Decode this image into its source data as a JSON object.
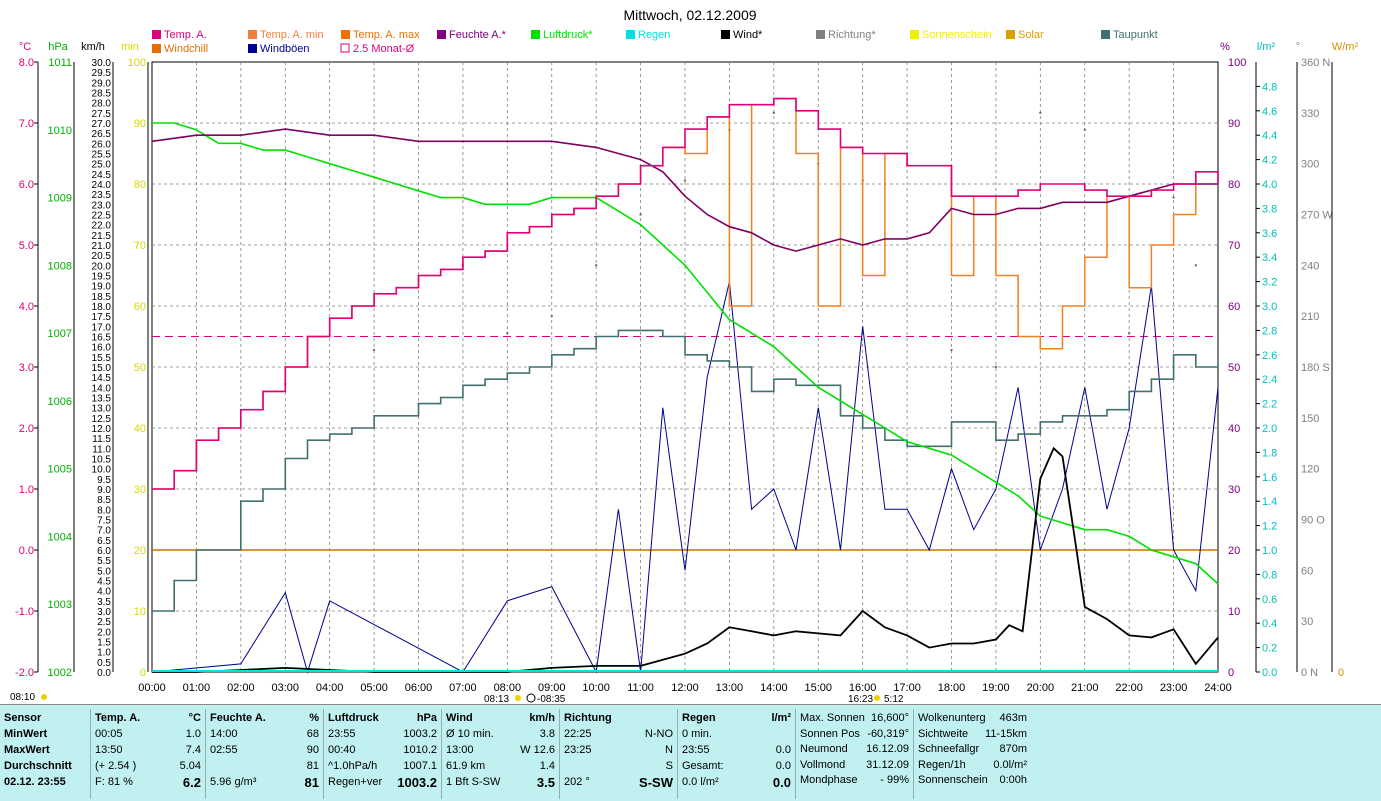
{
  "chart_data": {
    "type": "line",
    "title": "Mittwoch, 02.12.2009",
    "x_axis": {
      "unit": "hours",
      "range": [
        0,
        24
      ],
      "tick_labels": [
        "00:00",
        "01:00",
        "02:00",
        "03:00",
        "04:00",
        "05:00",
        "06:00",
        "07:00",
        "08:00",
        "09:00",
        "10:00",
        "11:00",
        "12:00",
        "13:00",
        "14:00",
        "15:00",
        "16:00",
        "17:00",
        "18:00",
        "19:00",
        "20:00",
        "21:00",
        "22:00",
        "23:00",
        "24:00"
      ],
      "sun_markers": [
        "08:10",
        "08:13",
        "08:35",
        "16:23",
        "16:25:12"
      ],
      "sun_labels": {
        "sunrise_left": "08:10",
        "sunrise": "08:13",
        "dawn_end": "-08:35",
        "sunset": "16:23",
        "sunset_end": "5:12"
      }
    },
    "axes_left": [
      {
        "name": "temperature",
        "unit": "°C",
        "range": [
          -2,
          8
        ],
        "ticks": [
          "8.0",
          "7.0",
          "6.0",
          "5.0",
          "4.0",
          "3.0",
          "2.0",
          "1.0",
          "0.0",
          "-1.0",
          "-2.0"
        ],
        "color": "#e0007a"
      },
      {
        "name": "pressure",
        "unit": "hPa",
        "range": [
          1002,
          1011
        ],
        "ticks": [
          "1011",
          "1010",
          "1009",
          "1008",
          "1007",
          "1006",
          "1005",
          "1004",
          "1003",
          "1002"
        ],
        "color": "#00b000"
      },
      {
        "name": "wind",
        "unit": "km/h",
        "range": [
          0,
          30
        ],
        "color": "#000000"
      },
      {
        "name": "minutes",
        "unit": "min",
        "range": [
          0,
          100
        ],
        "ticks": [
          "100",
          "90",
          "80",
          "70",
          "60",
          "50",
          "40",
          "30",
          "20",
          "10",
          "0"
        ],
        "color": "#d8d800"
      }
    ],
    "axes_right": [
      {
        "name": "humidity",
        "unit": "%",
        "range": [
          0,
          100
        ],
        "ticks": [
          "100",
          "90",
          "80",
          "70",
          "60",
          "50",
          "40",
          "30",
          "20",
          "10",
          "0"
        ],
        "color": "#800080"
      },
      {
        "name": "rain",
        "unit": "l/m²",
        "range": [
          0,
          5
        ],
        "ticks": [
          "4.8",
          "4.6",
          "4.4",
          "4.2",
          "4.0",
          "3.8",
          "3.6",
          "3.4",
          "3.2",
          "3.0",
          "2.8",
          "2.6",
          "2.4",
          "2.2",
          "2.0",
          "1.8",
          "1.6",
          "1.4",
          "1.2",
          "1.0",
          "0.8",
          "0.6",
          "0.4",
          "0.2",
          "0.0"
        ],
        "color": "#00c0c0"
      },
      {
        "name": "direction",
        "unit": "°",
        "range": [
          0,
          360
        ],
        "ticks": [
          "360 N",
          "330",
          "300",
          "270 W",
          "240",
          "210",
          "180 S",
          "150",
          "120",
          "90 O",
          "60",
          "30",
          "0 N"
        ],
        "color": "#808080"
      },
      {
        "name": "solar",
        "unit": "W/m²",
        "range": [
          0,
          0
        ],
        "ticks": [
          "0"
        ],
        "color": "#d89000"
      }
    ],
    "legend": [
      {
        "label": "Temp. A.",
        "color": "#e0007a"
      },
      {
        "label": "Temp. A. min",
        "color": "#f08040"
      },
      {
        "label": "Temp. A. max",
        "color": "#f07000"
      },
      {
        "label": "Feuchte A.*",
        "color": "#800080"
      },
      {
        "label": "Luftdruck*",
        "color": "#00e000"
      },
      {
        "label": "Regen",
        "color": "#00e0e0"
      },
      {
        "label": "Wind*",
        "color": "#000000"
      },
      {
        "label": "Richtung*",
        "color": "#808080"
      },
      {
        "label": "Sonnenschein",
        "color": "#f0f000"
      },
      {
        "label": "Solar",
        "color": "#d8a000"
      },
      {
        "label": "Taupunkt",
        "color": "#407070"
      },
      {
        "label": "Windchill",
        "color": "#e07000"
      },
      {
        "label": "Windböen",
        "color": "#000090"
      },
      {
        "label": "2.5 Monat-Ø",
        "color": "#e0007a"
      }
    ],
    "reference_lines": {
      "temp_2_5_month_avg_c": 3.5,
      "windchill_level_c": 0.0
    },
    "series": [
      {
        "name": "Temp. A.",
        "unit": "°C",
        "x": [
          0,
          0.5,
          1,
          1.5,
          2,
          2.5,
          3,
          3.5,
          4,
          4.5,
          5,
          5.5,
          6,
          6.5,
          7,
          7.5,
          8,
          8.5,
          9,
          9.5,
          10,
          10.5,
          11,
          11.5,
          12,
          12.5,
          13,
          13.5,
          14,
          14.5,
          15,
          15.5,
          16,
          16.5,
          17,
          17.5,
          18,
          18.5,
          19,
          19.5,
          20,
          20.5,
          21,
          21.5,
          22,
          22.5,
          23,
          23.5,
          24
        ],
        "values": [
          1.0,
          1.3,
          1.8,
          2.0,
          2.3,
          2.6,
          3.0,
          3.5,
          3.8,
          4.0,
          4.2,
          4.3,
          4.5,
          4.6,
          4.8,
          4.9,
          5.2,
          5.3,
          5.5,
          5.6,
          5.8,
          6.0,
          6.3,
          6.6,
          6.9,
          7.1,
          7.3,
          7.3,
          7.4,
          7.2,
          6.9,
          6.6,
          6.5,
          6.5,
          6.3,
          6.3,
          5.8,
          5.8,
          5.8,
          5.9,
          6.0,
          6.0,
          5.9,
          5.8,
          5.8,
          5.9,
          6.0,
          6.2,
          6.0
        ]
      },
      {
        "name": "Windchill",
        "unit": "°C",
        "x": [
          0,
          0.5,
          1,
          1.5,
          2,
          2.5,
          3,
          3.5,
          4,
          4.5,
          5,
          5.5,
          6,
          6.5,
          7,
          7.5,
          8,
          8.5,
          9,
          9.5,
          10,
          10.5,
          11,
          11.5,
          12,
          12.5,
          13,
          13.5,
          14,
          14.5,
          15,
          15.5,
          16,
          16.5,
          17,
          17.5,
          18,
          18.5,
          19,
          19.5,
          20,
          20.5,
          21,
          21.5,
          22,
          22.5,
          23,
          23.5,
          24
        ],
        "values": [
          1.0,
          1.3,
          1.8,
          2.0,
          2.3,
          2.6,
          3.0,
          3.5,
          3.8,
          4.0,
          4.2,
          4.3,
          4.5,
          4.6,
          4.8,
          4.9,
          5.2,
          5.3,
          5.5,
          5.6,
          5.8,
          6.0,
          6.3,
          6.6,
          6.5,
          7.1,
          4.0,
          7.3,
          7.4,
          6.5,
          4.0,
          6.6,
          4.5,
          6.5,
          6.3,
          6.3,
          4.5,
          5.8,
          4.5,
          3.5,
          3.3,
          4.0,
          4.8,
          5.8,
          4.3,
          5.0,
          5.5,
          6.2,
          6.0
        ]
      },
      {
        "name": "Feuchte A.*",
        "unit": "%",
        "x": [
          0,
          1,
          2,
          3,
          4,
          5,
          6,
          7,
          8,
          9,
          10,
          10.5,
          11,
          11.5,
          12,
          12.5,
          13,
          13.5,
          14,
          14.5,
          15,
          15.5,
          16,
          16.5,
          17,
          17.5,
          18,
          18.5,
          19,
          19.5,
          20,
          20.5,
          21,
          21.5,
          22,
          22.5,
          23,
          23.5,
          24
        ],
        "values": [
          87,
          88,
          88,
          89,
          88,
          88,
          87,
          87,
          87,
          87,
          86,
          85,
          84,
          82,
          78,
          75,
          73,
          72,
          70,
          69,
          70,
          71,
          70,
          71,
          71,
          72,
          76,
          75,
          75,
          76,
          76,
          77,
          77,
          77,
          78,
          79,
          80,
          80,
          80
        ]
      },
      {
        "name": "Luftdruck*",
        "unit": "hPa",
        "x": [
          0,
          0.5,
          1,
          1.5,
          2,
          2.5,
          3,
          3.5,
          4,
          4.5,
          5,
          5.5,
          6,
          6.5,
          7,
          7.5,
          8,
          8.5,
          9,
          9.5,
          10,
          10.5,
          11,
          11.5,
          12,
          12.5,
          13,
          13.5,
          14,
          14.5,
          15,
          15.5,
          16,
          16.5,
          17,
          17.5,
          18,
          18.5,
          19,
          19.5,
          20,
          20.5,
          21,
          21.5,
          22,
          22.5,
          23,
          23.5,
          24
        ],
        "values": [
          1010.1,
          1010.1,
          1010.0,
          1009.8,
          1009.8,
          1009.7,
          1009.7,
          1009.6,
          1009.5,
          1009.4,
          1009.3,
          1009.2,
          1009.1,
          1009.0,
          1009.0,
          1008.9,
          1008.9,
          1008.9,
          1009.0,
          1009.0,
          1009.0,
          1008.8,
          1008.6,
          1008.3,
          1008.0,
          1007.6,
          1007.2,
          1007.0,
          1006.8,
          1006.5,
          1006.2,
          1006.0,
          1005.8,
          1005.6,
          1005.4,
          1005.3,
          1005.2,
          1005.0,
          1004.8,
          1004.6,
          1004.3,
          1004.2,
          1004.1,
          1004.1,
          1004.0,
          1003.8,
          1003.7,
          1003.6,
          1003.3
        ]
      },
      {
        "name": "Taupunkt",
        "unit": "°C",
        "x": [
          0,
          0.5,
          1,
          1.5,
          2,
          2.5,
          3,
          3.5,
          4,
          4.5,
          5,
          5.5,
          6,
          6.5,
          7,
          7.5,
          8,
          8.5,
          9,
          9.5,
          10,
          10.5,
          11,
          11.5,
          12,
          12.5,
          13,
          13.5,
          14,
          14.5,
          15,
          15.5,
          16,
          16.5,
          17,
          17.5,
          18,
          18.5,
          19,
          19.5,
          20,
          20.5,
          21,
          21.5,
          22,
          22.5,
          23,
          23.5,
          24
        ],
        "values": [
          -1.0,
          -0.5,
          0.0,
          0.0,
          0.8,
          1.0,
          1.5,
          1.8,
          1.9,
          2.0,
          2.2,
          2.2,
          2.4,
          2.5,
          2.7,
          2.8,
          2.9,
          3.0,
          3.2,
          3.3,
          3.5,
          3.6,
          3.6,
          3.5,
          3.2,
          3.1,
          3.0,
          2.6,
          2.8,
          2.7,
          2.7,
          2.2,
          2.0,
          1.8,
          1.7,
          1.7,
          2.1,
          2.1,
          1.8,
          1.9,
          2.1,
          2.2,
          2.2,
          2.3,
          2.6,
          2.8,
          3.2,
          3.0,
          3.1
        ]
      },
      {
        "name": "Wind*",
        "unit": "km/h",
        "x": [
          0,
          1,
          2,
          3,
          4,
          5,
          6,
          7,
          8,
          9,
          10,
          11,
          11.5,
          12,
          12.5,
          13,
          13.5,
          14,
          14.5,
          15,
          15.5,
          16,
          16.5,
          17,
          17.5,
          18,
          18.5,
          19,
          19.3,
          19.6,
          20,
          20.3,
          20.5,
          20.8,
          21,
          21.5,
          22,
          22.5,
          23,
          23.5,
          24
        ],
        "values": [
          0,
          0,
          0.1,
          0.2,
          0.1,
          0,
          0,
          0,
          0,
          0.2,
          0.3,
          0.3,
          0.6,
          0.9,
          1.4,
          2.2,
          2.0,
          1.8,
          2.0,
          1.9,
          1.8,
          3.0,
          2.2,
          1.8,
          1.2,
          1.4,
          1.4,
          1.6,
          2.3,
          2.0,
          9.5,
          11.0,
          10.6,
          6.2,
          3.2,
          2.6,
          1.8,
          1.7,
          2.1,
          0.4,
          1.7
        ]
      },
      {
        "name": "Windböen",
        "unit": "km/h",
        "x": [
          0,
          2,
          3,
          3.5,
          4,
          7,
          8,
          9,
          10,
          10.5,
          11,
          11.5,
          12,
          12.5,
          13,
          13.5,
          14,
          14.5,
          15,
          15.5,
          16,
          16.5,
          17,
          17.5,
          18,
          18.5,
          19,
          19.5,
          20,
          20.5,
          21,
          21.5,
          22,
          22.5,
          23,
          23.5,
          24
        ],
        "values": [
          0,
          0.4,
          3.9,
          0,
          3.5,
          0,
          3.5,
          4.2,
          0,
          8.0,
          0,
          13.0,
          5.0,
          14.5,
          19.2,
          8.0,
          9.0,
          6.0,
          13.0,
          6.0,
          17.0,
          8.0,
          8.0,
          6.0,
          10.0,
          7.0,
          9.0,
          14.0,
          6.0,
          9.0,
          14.0,
          8.0,
          12.0,
          19.0,
          6.0,
          4.0,
          14.0
        ]
      },
      {
        "name": "Richtung*",
        "unit": "°",
        "x": [
          3,
          5,
          7,
          8,
          9,
          10,
          11,
          12,
          13,
          14,
          15,
          16,
          17,
          18,
          19,
          20,
          21,
          22,
          23,
          23.5
        ],
        "values": [
          170,
          190,
          240,
          200,
          210,
          240,
          270,
          290,
          320,
          330,
          300,
          290,
          300,
          190,
          180,
          330,
          320,
          200,
          280,
          240
        ]
      }
    ],
    "stats": {
      "Temp. A.": {
        "unit": "°C",
        "min": {
          "time": "00:05",
          "value": "1.0"
        },
        "max": {
          "time": "13:50",
          "value": "7.4"
        },
        "avg": {
          "note": "(+ 2.54 )",
          "value": "5.04"
        },
        "current": "6.2"
      },
      "Feuchte A.": {
        "unit": "%",
        "min": {
          "time": "14:00",
          "value": "68"
        },
        "max": {
          "time": "02:55",
          "value": "90"
        },
        "avg": "81",
        "current": "81"
      },
      "Luftdruck": {
        "unit": "hPa",
        "min": {
          "time": "23:55",
          "value": "1003.2"
        },
        "max": {
          "time": "00:40",
          "value": "1010.2"
        },
        "avg": "1007.1",
        "current": "1003.2"
      },
      "Wind": {
        "unit": "km/h"
      }
    }
  },
  "panel": {
    "sensor": {
      "header": "Sensor",
      "rows": [
        "MinWert",
        "MaxWert",
        "Durchschnitt",
        "02.12. 23:55"
      ]
    },
    "temp": {
      "header": "Temp. A.",
      "unit": "°C",
      "rows": [
        {
          "a": "00:05",
          "b": "1.0"
        },
        {
          "a": "13:50",
          "b": "7.4"
        },
        {
          "a": "(+ 2.54 )",
          "b": "5.04"
        },
        {
          "a": "F: 81 %",
          "b": "6.2"
        }
      ]
    },
    "feuchte": {
      "header": "Feuchte A.",
      "unit": "%",
      "rows": [
        {
          "a": "14:00",
          "b": "68"
        },
        {
          "a": "02:55",
          "b": "90"
        },
        {
          "a": "",
          "b": "81"
        },
        {
          "a": "5.96 g/m³",
          "b": "81"
        }
      ]
    },
    "luftdruck": {
      "header": "Luftdruck",
      "unit": "hPa",
      "rows": [
        {
          "a": "23:55",
          "b": "1003.2"
        },
        {
          "a": "00:40",
          "b": "1010.2"
        },
        {
          "a": "^1.0hPa/h",
          "b": "1007.1"
        },
        {
          "a": "Regen+ver",
          "b": "1003.2"
        }
      ]
    },
    "wind": {
      "header": "Wind",
      "unit": "km/h",
      "rows": [
        {
          "a": "Ø 10 min.",
          "b": "3.8"
        },
        {
          "a": "13:00",
          "b": "W 12.6"
        },
        {
          "a": "61.9 km",
          "b": "1.4"
        },
        {
          "a": "1 Bft S-SW",
          "b": "3.5"
        }
      ]
    },
    "richtung": {
      "header": "Richtung",
      "rows": [
        {
          "a": "22:25",
          "b": "N-NO"
        },
        {
          "a": "23:25",
          "b": "N"
        },
        {
          "a": "",
          "b": "S"
        },
        {
          "a": "202 °",
          "b": "S-SW"
        }
      ]
    },
    "regen": {
      "header": "Regen",
      "unit": "l/m²",
      "rows": [
        {
          "a": "0 min.",
          "b": ""
        },
        {
          "a": "23:55",
          "b": "0.0"
        },
        {
          "a": "Gesamt:",
          "b": "0.0"
        },
        {
          "a": "0.0 l/m²",
          "b": "0.0"
        }
      ]
    },
    "sonne": {
      "rows": [
        {
          "a": "Max. Sonnen",
          "b": "16,600°"
        },
        {
          "a": "Sonnen Pos",
          "b": "-60,319°"
        },
        {
          "a": "Neumond",
          "b": "16.12.09"
        },
        {
          "a": "Vollmond",
          "b": "31.12.09"
        },
        {
          "a": "Mondphase",
          "b": "- 99%"
        }
      ]
    },
    "wolken": {
      "rows": [
        {
          "a": "Wolkenunterg",
          "b": "463m"
        },
        {
          "a": "Sichtweite",
          "b": "11-15km"
        },
        {
          "a": "Schneefallgr",
          "b": "870m"
        },
        {
          "a": "Regen/1h",
          "b": "0.0l/m²"
        },
        {
          "a": "Sonnenschein",
          "b": "0:00h"
        }
      ]
    }
  }
}
